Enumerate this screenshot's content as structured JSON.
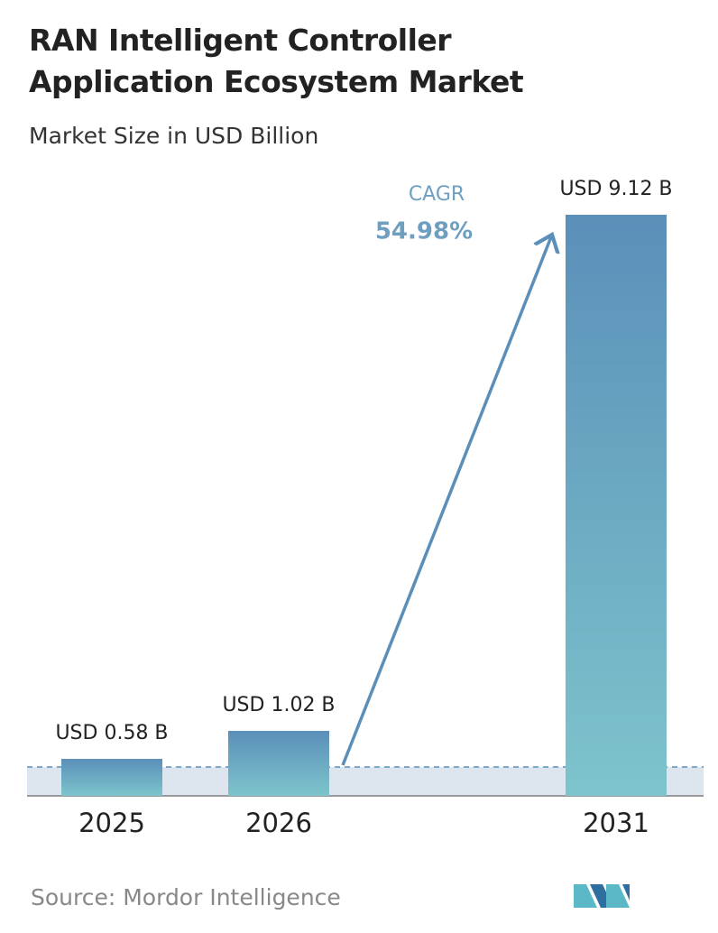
{
  "chart_data": {
    "type": "bar",
    "title": "RAN Intelligent Controller Application Ecosystem Market",
    "subtitle": "Market Size in USD Billion",
    "categories": [
      "2025",
      "2026",
      "2031"
    ],
    "values": [
      0.58,
      1.02,
      9.12
    ],
    "value_labels": [
      "USD 0.58 B",
      "USD 1.02 B",
      "USD 9.12 B"
    ],
    "color_top": "#5b8fb9",
    "color_bottom": "#7dc4cc",
    "annotation": {
      "label": "CAGR",
      "value": "54.98%"
    },
    "source": "Source: Mordor Intelligence"
  }
}
